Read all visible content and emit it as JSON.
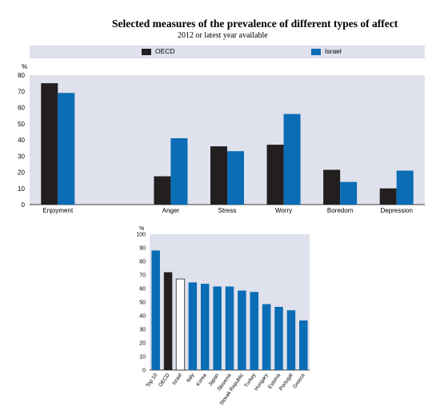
{
  "title": "Selected measures of the prevalence of different types of affect",
  "subtitle": "2012 or latest year available",
  "colors": {
    "oecd": "#231f20",
    "israel": "#0a6db5",
    "panel_bg": "#dfe1ec",
    "white_bar": "#ffffff"
  },
  "legend": [
    {
      "label": "OECD",
      "color": "#231f20"
    },
    {
      "label": "Israel",
      "color": "#0a6db5"
    }
  ],
  "chart_data": [
    {
      "type": "bar",
      "title": "",
      "ylabel": "%",
      "ylim": [
        0,
        80
      ],
      "yticks": [
        0,
        10,
        20,
        30,
        40,
        50,
        60,
        70,
        80
      ],
      "categories": [
        "Enjoyment",
        "",
        "Anger",
        "Stress",
        "Worry",
        "Boredom",
        "Depression"
      ],
      "series": [
        {
          "name": "OECD",
          "values": [
            75,
            null,
            17.5,
            36,
            37,
            21.5,
            10
          ]
        },
        {
          "name": "Israel",
          "values": [
            69,
            null,
            41,
            33,
            56,
            14,
            21
          ]
        }
      ],
      "grid": false
    },
    {
      "type": "bar",
      "ylabel": "%",
      "ylim": [
        0,
        100
      ],
      "yticks": [
        0,
        10,
        20,
        30,
        40,
        50,
        60,
        70,
        80,
        90,
        100
      ],
      "categories": [
        "Top 10",
        "OECD",
        "Israel",
        "Italy",
        "Korea",
        "Japan",
        "Slovenia",
        "Slovak Republic",
        "Turkey",
        "Hungary",
        "Estonia",
        "Portugal",
        "Greece"
      ],
      "values": [
        88,
        72,
        67,
        64.5,
        63.5,
        61.5,
        61.5,
        58.5,
        57.5,
        48.5,
        46.5,
        44,
        36.5
      ],
      "bar_styles": [
        "blue",
        "black",
        "white",
        "blue",
        "blue",
        "blue",
        "blue",
        "blue",
        "blue",
        "blue",
        "blue",
        "blue",
        "blue"
      ],
      "grid": false
    }
  ]
}
